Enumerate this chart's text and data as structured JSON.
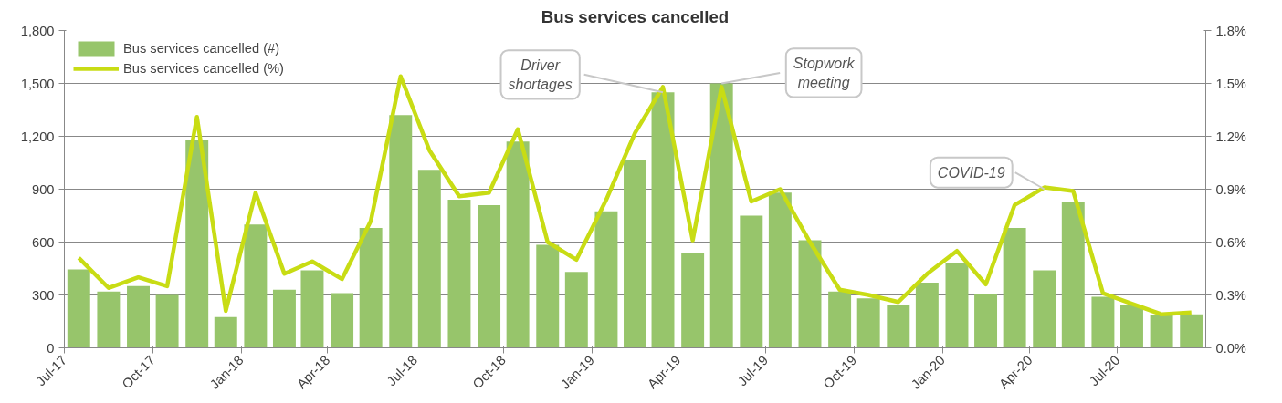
{
  "chart_data": {
    "type": "bar",
    "title": "Bus services cancelled",
    "x": [
      "2017-07-16",
      "2017-08-16",
      "2017-09-16",
      "2017-10-16",
      "2017-11-16",
      "2017-12-16",
      "2018-01-16",
      "2018-02-15",
      "2018-03-16",
      "2018-04-16",
      "2018-05-16",
      "2018-06-16",
      "2018-07-16",
      "2018-08-16",
      "2018-09-16",
      "2018-10-16",
      "2018-11-16",
      "2018-12-16",
      "2019-01-16",
      "2019-02-15",
      "2019-03-16",
      "2019-04-16",
      "2019-05-16",
      "2019-06-16",
      "2019-07-16",
      "2019-08-16",
      "2019-09-16",
      "2019-10-16",
      "2019-11-16",
      "2019-12-16",
      "2020-01-16",
      "2020-02-15",
      "2020-03-16",
      "2020-04-16",
      "2020-05-16",
      "2020-06-16",
      "2020-07-16",
      "2020-08-16",
      "2020-09-16"
    ],
    "series": [
      {
        "name": "Bus services cancelled (#)",
        "color": "#97c56b",
        "values": [
          445,
          320,
          350,
          300,
          1180,
          175,
          700,
          330,
          440,
          310,
          680,
          1320,
          1010,
          840,
          810,
          1170,
          585,
          430,
          775,
          1065,
          1450,
          540,
          1500,
          750,
          880,
          610,
          320,
          280,
          245,
          370,
          480,
          305,
          680,
          440,
          830,
          290,
          240,
          185,
          190
        ]
      },
      {
        "name": "Bus services cancelled (%)",
        "type": "line",
        "axis": "y2",
        "color": "#c8dc14",
        "values": [
          0.51,
          0.34,
          0.4,
          0.35,
          1.31,
          0.21,
          0.88,
          0.42,
          0.49,
          0.39,
          0.72,
          1.54,
          1.12,
          0.86,
          0.88,
          1.24,
          0.6,
          0.5,
          0.84,
          1.22,
          1.48,
          0.61,
          1.48,
          0.83,
          0.9,
          0.6,
          0.33,
          0.3,
          0.26,
          0.42,
          0.55,
          0.36,
          0.81,
          0.91,
          0.89,
          0.31,
          0.25,
          0.19,
          0.2
        ]
      }
    ],
    "xlim": [
      "2017-07",
      "2020-10"
    ],
    "xticks": [
      {
        "value": "2017-07",
        "label": "Jul-17"
      },
      {
        "value": "2017-10",
        "label": "Oct-17"
      },
      {
        "value": "2018-01",
        "label": "Jan-18"
      },
      {
        "value": "2018-04",
        "label": "Apr-18"
      },
      {
        "value": "2018-07",
        "label": "Jul-18"
      },
      {
        "value": "2018-10",
        "label": "Oct-18"
      },
      {
        "value": "2019-01",
        "label": "Jan-19"
      },
      {
        "value": "2019-04",
        "label": "Apr-19"
      },
      {
        "value": "2019-07",
        "label": "Jul-19"
      },
      {
        "value": "2019-10",
        "label": "Oct-19"
      },
      {
        "value": "2020-01",
        "label": "Jan-20"
      },
      {
        "value": "2020-04",
        "label": "Apr-20"
      },
      {
        "value": "2020-07",
        "label": "Jul-20"
      }
    ],
    "ylim": [
      0,
      1800
    ],
    "yticks": [
      0,
      300,
      600,
      900,
      {
        "value": 1200,
        "label": "1,200"
      },
      {
        "value": 1500,
        "label": "1,500"
      },
      {
        "value": 1800,
        "label": "1,800"
      }
    ],
    "y2lim": [
      0,
      1.8
    ],
    "y2ticks": [
      {
        "value": 0,
        "label": "0.0%"
      },
      {
        "value": 0.3,
        "label": "0.3%"
      },
      {
        "value": 0.6,
        "label": "0.6%"
      },
      {
        "value": 0.9,
        "label": "0.9%"
      },
      {
        "value": 1.2,
        "label": "1.2%"
      },
      {
        "value": 1.5,
        "label": "1.5%"
      },
      {
        "value": 1.8,
        "label": "1.8%"
      }
    ],
    "grid": "y",
    "legend": "top left",
    "annotations": [
      {
        "text": "Driver shortages",
        "x": "2019-03-16",
        "y": 1450
      },
      {
        "text": "Stopwork meeting",
        "x": "2019-05-16",
        "y": 1500
      },
      {
        "text": "COVID-19",
        "x": "2020-04-16",
        "y": 900
      }
    ]
  }
}
